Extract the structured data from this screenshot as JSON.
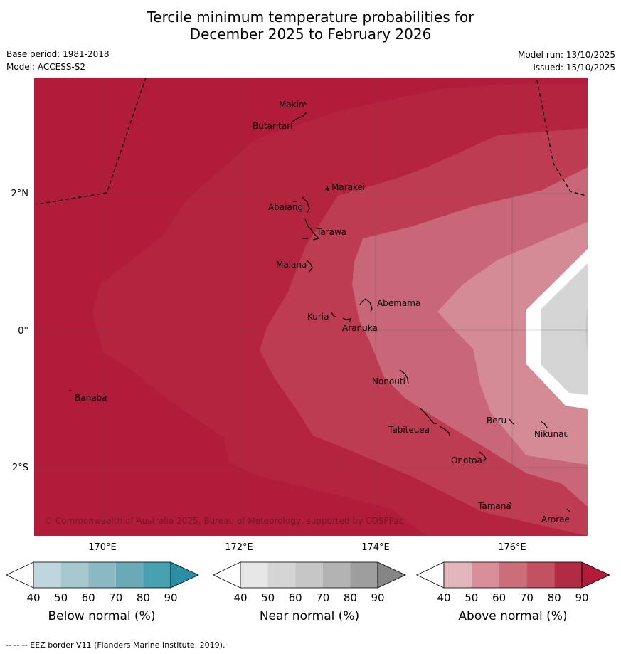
{
  "title": {
    "line1": "Tercile minimum temperature probabilities for",
    "line2": "December 2025 to February 2026"
  },
  "info": {
    "base_period": "Base period: 1981-2018",
    "model": "Model: ACCESS-S2",
    "model_run": "Model run: 13/10/2025",
    "issued": "Issued: 15/10/2025"
  },
  "axes": {
    "lon_ticks": [
      "170°E",
      "172°E",
      "174°E",
      "176°E"
    ],
    "lat_ticks": [
      "2°N",
      "0°",
      "2°S"
    ]
  },
  "places": [
    "Makin",
    "Butaritari",
    "Marakei",
    "Abaiang",
    "Tarawa",
    "Maiana",
    "Abemama",
    "Kuria",
    "Aranuka",
    "Banaba",
    "Nonouti",
    "Tabiteuea",
    "Beru",
    "Nikunau",
    "Onotoa",
    "Tamana",
    "Arorae"
  ],
  "copyright": "© Commonwealth of Australia 2025, Bureau of Meteorology, supported by COSPPac",
  "colorbars": [
    {
      "label": "Below normal (%)",
      "ticks": [
        "40",
        "50",
        "60",
        "70",
        "80",
        "90"
      ],
      "colors": [
        "#ffffff",
        "#bfd6dd",
        "#a6c8cf",
        "#8bb9c3",
        "#6aa9b7",
        "#48a1b1",
        "#2a8fa5"
      ]
    },
    {
      "label": "Near normal (%)",
      "ticks": [
        "40",
        "50",
        "60",
        "70",
        "80",
        "90"
      ],
      "colors": [
        "#ffffff",
        "#e6e6e6",
        "#d5d5d5",
        "#c6c6c6",
        "#b3b3b3",
        "#9e9e9e",
        "#858585"
      ]
    },
    {
      "label": "Above normal (%)",
      "ticks": [
        "40",
        "50",
        "60",
        "70",
        "80",
        "90"
      ],
      "colors": [
        "#ffffff",
        "#e2b6bd",
        "#d88f9a",
        "#cc6e7a",
        "#c25262",
        "#b22b44",
        "#b01c3a"
      ]
    }
  ],
  "footnote": "--  --  -- EEZ border V11 (Flanders Marine Institute, 2019)."
}
